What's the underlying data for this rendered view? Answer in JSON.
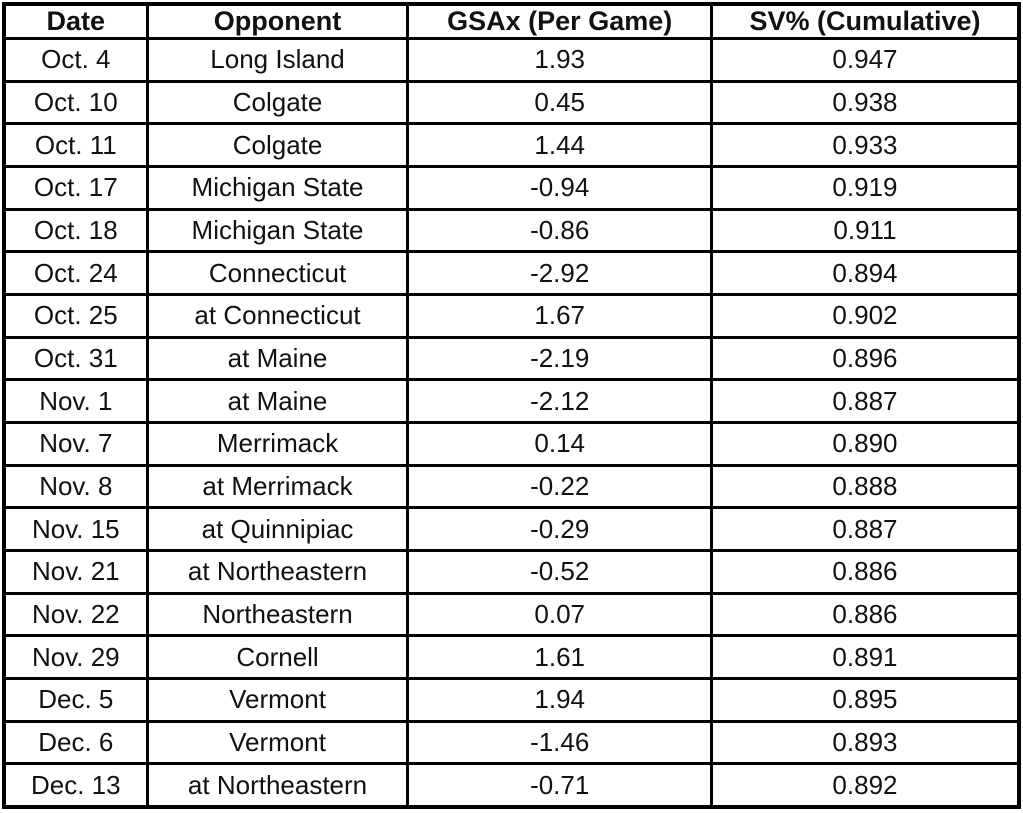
{
  "chart_data": {
    "type": "table",
    "title": "",
    "columns": [
      "Date",
      "Opponent",
      "GSAx (Per Game)",
      "SV% (Cumulative)"
    ],
    "rows": [
      [
        "Oct. 4",
        "Long Island",
        "1.93",
        "0.947"
      ],
      [
        "Oct. 10",
        "Colgate",
        "0.45",
        "0.938"
      ],
      [
        "Oct. 11",
        "Colgate",
        "1.44",
        "0.933"
      ],
      [
        "Oct. 17",
        "Michigan State",
        "-0.94",
        "0.919"
      ],
      [
        "Oct. 18",
        "Michigan State",
        "-0.86",
        "0.911"
      ],
      [
        "Oct. 24",
        "Connecticut",
        "-2.92",
        "0.894"
      ],
      [
        "Oct. 25",
        "at Connecticut",
        "1.67",
        "0.902"
      ],
      [
        "Oct. 31",
        "at Maine",
        "-2.19",
        "0.896"
      ],
      [
        "Nov. 1",
        "at Maine",
        "-2.12",
        "0.887"
      ],
      [
        "Nov. 7",
        "Merrimack",
        "0.14",
        "0.890"
      ],
      [
        "Nov. 8",
        "at Merrimack",
        "-0.22",
        "0.888"
      ],
      [
        "Nov. 15",
        "at Quinnipiac",
        "-0.29",
        "0.887"
      ],
      [
        "Nov. 21",
        "at Northeastern",
        "-0.52",
        "0.886"
      ],
      [
        "Nov. 22",
        "Northeastern",
        "0.07",
        "0.886"
      ],
      [
        "Nov. 29",
        "Cornell",
        "1.61",
        "0.891"
      ],
      [
        "Dec. 5",
        "Vermont",
        "1.94",
        "0.895"
      ],
      [
        "Dec. 6",
        "Vermont",
        "-1.46",
        "0.893"
      ],
      [
        "Dec. 13",
        "at Northeastern",
        "-0.71",
        "0.892"
      ]
    ]
  },
  "colors": {
    "border": "#000000",
    "background": "#ffffff",
    "text": "#111111"
  }
}
